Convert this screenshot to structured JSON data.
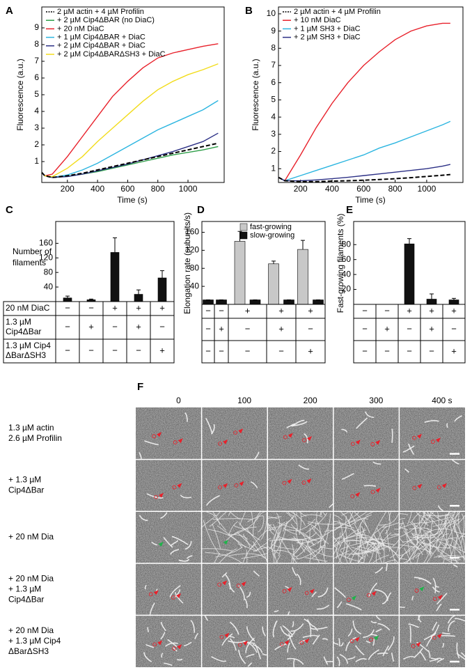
{
  "chart_data": [
    {
      "panel": "A",
      "type": "line",
      "xlabel": "Time (s)",
      "ylabel": "Fluorescence (a.u.)",
      "x": [
        30,
        50,
        100,
        200,
        300,
        400,
        500,
        600,
        700,
        800,
        900,
        1000,
        1100,
        1200
      ],
      "xlim": [
        30,
        1240
      ],
      "ylim": [
        -0.25,
        10.25
      ],
      "xticks": [
        200,
        400,
        600,
        800,
        1000
      ],
      "yticks": [
        1,
        2,
        3,
        4,
        5,
        6,
        7,
        8,
        9
      ],
      "series": [
        {
          "name": "2 µM actin + 4 µM Profilin",
          "color": "#000000",
          "style": "dashed",
          "values": [
            0.35,
            0.15,
            0.05,
            0.15,
            0.3,
            0.5,
            0.7,
            0.9,
            1.1,
            1.3,
            1.5,
            1.7,
            1.9,
            2.1
          ]
        },
        {
          "name": "+ 2 µM Cip4ΔBAR (no DiaC)",
          "color": "#2e9e48",
          "style": "solid",
          "values": [
            0.35,
            0.15,
            0.05,
            0.12,
            0.25,
            0.4,
            0.6,
            0.8,
            1.0,
            1.2,
            1.4,
            1.55,
            1.7,
            1.9
          ]
        },
        {
          "name": "+ 20 nM DiaC",
          "color": "#e8202a",
          "style": "solid",
          "values": [
            0.35,
            0.15,
            0.25,
            1.3,
            2.5,
            3.7,
            4.9,
            5.8,
            6.6,
            7.2,
            7.5,
            7.7,
            7.9,
            8.05
          ]
        },
        {
          "name": "+ 1 µM Cip4ΔBAR + DiaC",
          "color": "#2bb5e0",
          "style": "solid",
          "values": [
            0.35,
            0.15,
            0.05,
            0.2,
            0.5,
            0.9,
            1.4,
            1.9,
            2.4,
            2.9,
            3.3,
            3.7,
            4.1,
            4.65
          ]
        },
        {
          "name": "+ 2 µM Cip4ΔBAR + DiaC",
          "color": "#2b2f85",
          "style": "solid",
          "values": [
            0.35,
            0.15,
            0.05,
            0.1,
            0.25,
            0.45,
            0.65,
            0.85,
            1.1,
            1.35,
            1.6,
            1.9,
            2.2,
            2.7
          ]
        },
        {
          "name": "+ 2 µM Cip4ΔBARΔSH3 + DiaC",
          "color": "#f2dc1b",
          "style": "solid",
          "values": [
            0.35,
            0.15,
            0.1,
            0.6,
            1.3,
            2.2,
            3.0,
            3.8,
            4.6,
            5.3,
            5.8,
            6.2,
            6.5,
            6.85
          ]
        }
      ]
    },
    {
      "panel": "B",
      "type": "line",
      "xlabel": "Time (s)",
      "ylabel": "Fluorescence (a.u.)",
      "x": [
        60,
        100,
        200,
        300,
        400,
        500,
        600,
        700,
        800,
        900,
        1000,
        1100,
        1150
      ],
      "xlim": [
        60,
        1230
      ],
      "ylim": [
        0.2,
        10.4
      ],
      "xticks": [
        200,
        400,
        600,
        800,
        1000
      ],
      "yticks": [
        1,
        2,
        3,
        4,
        5,
        6,
        7,
        8,
        9,
        10
      ],
      "series": [
        {
          "name": "2 µM actin + 4 µM Profilin",
          "color": "#000000",
          "style": "dashed",
          "values": [
            0.5,
            0.3,
            0.25,
            0.25,
            0.28,
            0.3,
            0.33,
            0.37,
            0.42,
            0.48,
            0.55,
            0.62,
            0.66
          ]
        },
        {
          "name": "+ 10 nM DiaC",
          "color": "#e8202a",
          "style": "solid",
          "values": [
            0.5,
            0.3,
            1.8,
            3.4,
            4.8,
            6.0,
            7.0,
            7.8,
            8.5,
            9.0,
            9.3,
            9.45,
            9.45
          ]
        },
        {
          "name": "+ 1 µM SH3 + DiaC",
          "color": "#2bb5e0",
          "style": "solid",
          "values": [
            0.5,
            0.3,
            0.6,
            0.9,
            1.2,
            1.5,
            1.8,
            2.2,
            2.5,
            2.85,
            3.2,
            3.55,
            3.75
          ]
        },
        {
          "name": "+ 2 µM SH3 + DiaC",
          "color": "#2b2f85",
          "style": "solid",
          "values": [
            0.5,
            0.3,
            0.3,
            0.35,
            0.42,
            0.5,
            0.6,
            0.7,
            0.8,
            0.9,
            1.0,
            1.15,
            1.25
          ]
        }
      ]
    },
    {
      "panel": "C",
      "type": "bar",
      "ylabel": [
        "Number of",
        "filaments"
      ],
      "values": [
        10,
        5,
        135,
        20,
        65
      ],
      "errors": [
        5,
        2,
        40,
        12,
        20
      ],
      "color": "#111111",
      "ylim": [
        0,
        220
      ],
      "yticks": [
        40,
        80,
        120,
        160
      ],
      "table": {
        "rows": [
          {
            "label": [
              "20 nM DiaC"
            ],
            "marks": [
              "−",
              "−",
              "+",
              "+",
              "+"
            ]
          },
          {
            "label": [
              "1.3 µM",
              "Cip4ΔBar"
            ],
            "marks": [
              "−",
              "+",
              "−",
              "+",
              "−"
            ]
          },
          {
            "label": [
              "1.3 µM Cip4",
              "ΔBarΔSH3"
            ],
            "marks": [
              "−",
              "−",
              "−",
              "−",
              "+"
            ]
          }
        ]
      }
    },
    {
      "panel": "D",
      "type": "bar",
      "ylabel": "Elongation rate (subunits/s)",
      "series": [
        {
          "name": "fast-growing",
          "color": "#c8c8c8",
          "values": [
            null,
            null,
            140,
            90,
            122
          ],
          "errors": [
            null,
            null,
            22,
            6,
            20
          ]
        },
        {
          "name": "slow-growing",
          "color": "#111111",
          "values": [
            10,
            10,
            10,
            10,
            10
          ],
          "errors": [
            0,
            0,
            0,
            0,
            0
          ]
        }
      ],
      "ylim": [
        0,
        184
      ],
      "yticks": [
        40,
        80,
        120,
        160
      ],
      "table": {
        "rows": [
          {
            "marks": [
              "−",
              "−",
              "+",
              "+",
              "+"
            ]
          },
          {
            "marks": [
              "−",
              "+",
              "−",
              "+",
              "−"
            ]
          },
          {
            "marks": [
              "−",
              "−",
              "−",
              "−",
              "+"
            ]
          }
        ]
      }
    },
    {
      "panel": "E",
      "type": "bar",
      "ylabel": "Fast-growing filaments (%)",
      "values": [
        0,
        0,
        81,
        7,
        6
      ],
      "errors": [
        0,
        0,
        7,
        7,
        2
      ],
      "color": "#111111",
      "ylim": [
        0,
        111
      ],
      "yticks": [
        20,
        40,
        60,
        80
      ],
      "table": {
        "rows": [
          {
            "marks": [
              "−",
              "−",
              "+",
              "+",
              "+"
            ]
          },
          {
            "marks": [
              "−",
              "+",
              "−",
              "+",
              "−"
            ]
          },
          {
            "marks": [
              "−",
              "−",
              "−",
              "−",
              "+"
            ]
          }
        ]
      }
    }
  ],
  "panel_f": {
    "panel": "F",
    "time_labels": [
      "0",
      "100",
      "200",
      "300",
      "400 s"
    ],
    "rows": [
      {
        "label": [
          "1.3 µM actin",
          "2.6 µM Profilin"
        ]
      },
      {
        "label": [
          "+ 1.3 µM",
          "Cip4ΔBar"
        ]
      },
      {
        "label": [
          "+ 20 nM Dia"
        ]
      },
      {
        "label": [
          "+ 20 nM Dia",
          "+ 1.3 µM",
          "Cip4ΔBar"
        ]
      },
      {
        "label": [
          "+ 20 nM Dia",
          "+ 1.3 µM Cip4",
          "ΔBarΔSH3"
        ]
      }
    ]
  }
}
